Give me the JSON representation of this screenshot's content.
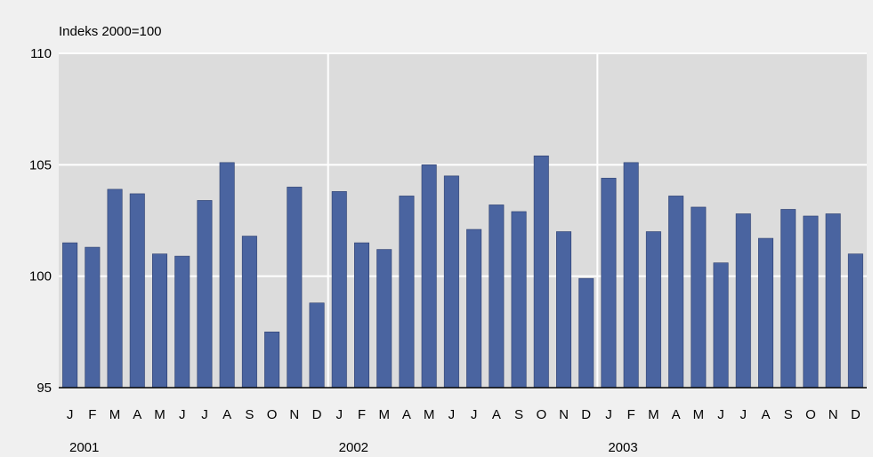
{
  "chart_data": {
    "type": "bar",
    "ylabel": "Indeks 2000=100",
    "ylim": [
      95,
      110
    ],
    "yticks": [
      95,
      100,
      105,
      110
    ],
    "grid": true,
    "colors": {
      "bar": "#4a64a0",
      "bar_edge": "#2c3e6e",
      "plot_bg": "#dcdcdc",
      "page_bg": "#f0f0f0",
      "grid": "#ffffff"
    },
    "years": [
      "2001",
      "2002",
      "2003"
    ],
    "categories": [
      "J",
      "F",
      "M",
      "A",
      "M",
      "J",
      "J",
      "A",
      "S",
      "O",
      "N",
      "D",
      "J",
      "F",
      "M",
      "A",
      "M",
      "J",
      "J",
      "A",
      "S",
      "O",
      "N",
      "D",
      "J",
      "F",
      "M",
      "A",
      "M",
      "J",
      "J",
      "A",
      "S",
      "O",
      "N",
      "D"
    ],
    "values": [
      101.5,
      101.3,
      103.9,
      103.7,
      101.0,
      100.9,
      103.4,
      105.1,
      101.8,
      97.5,
      104.0,
      98.8,
      103.8,
      101.5,
      101.2,
      103.6,
      105.0,
      104.5,
      102.1,
      103.2,
      102.9,
      105.4,
      102.0,
      99.9,
      104.4,
      105.1,
      102.0,
      103.6,
      103.1,
      100.6,
      102.8,
      101.7,
      103.0,
      102.7,
      102.8,
      101.0
    ]
  }
}
